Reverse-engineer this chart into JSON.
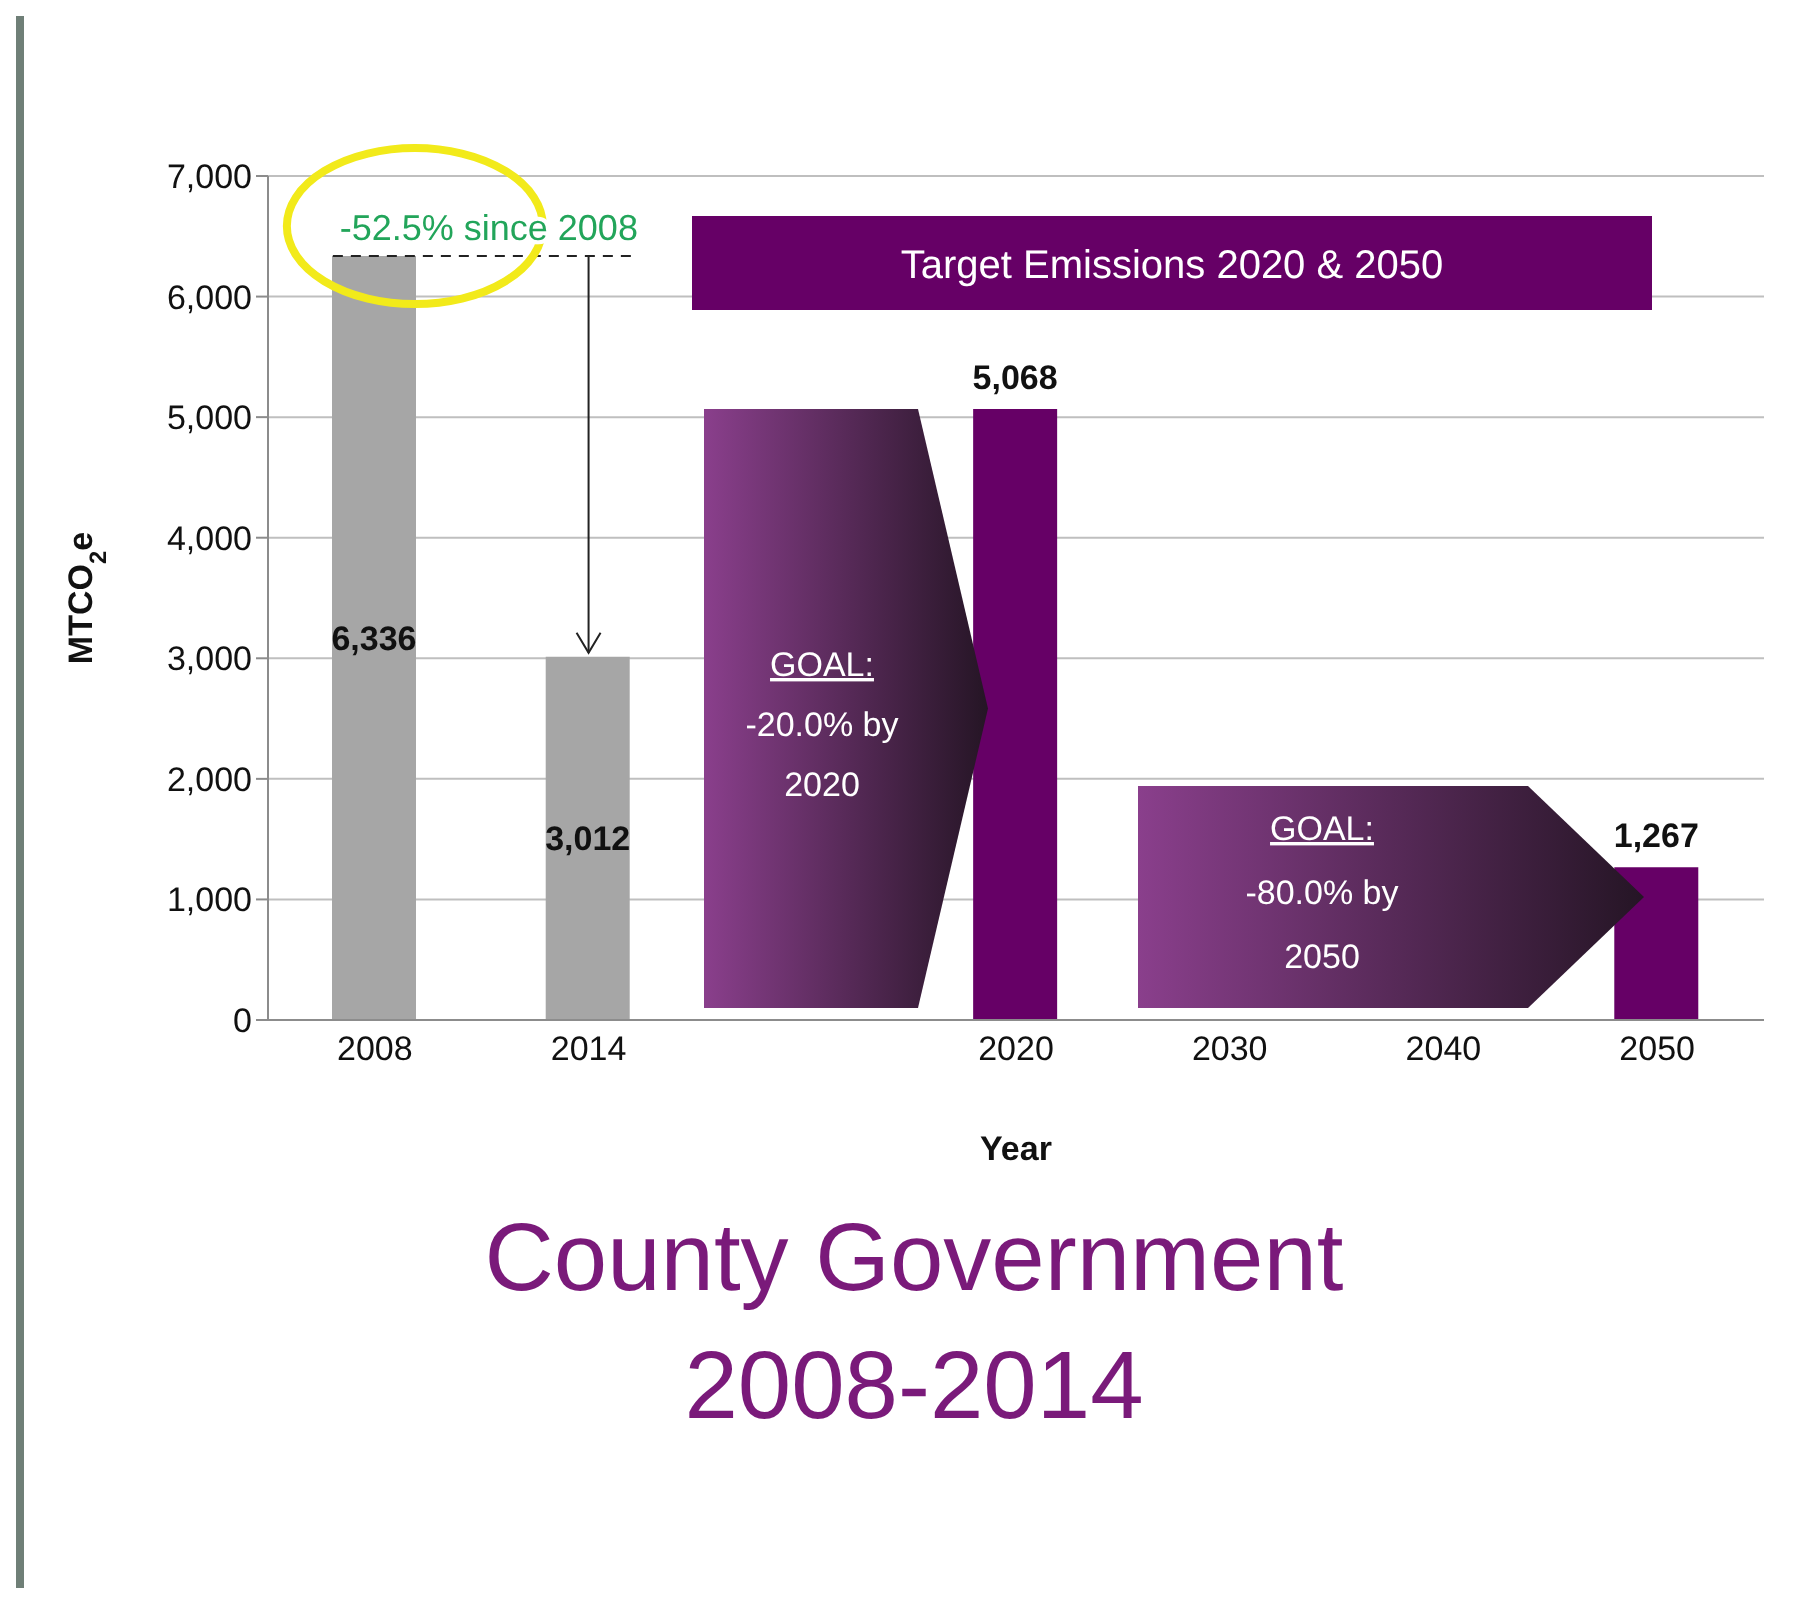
{
  "chart_data": {
    "type": "bar",
    "title": "County Government 2008-2014",
    "xlabel": "Year",
    "ylabel": "MTCO$_{2}$e",
    "categories": [
      "2008",
      "2014",
      null,
      "2020",
      "2030",
      "2040",
      "2050"
    ],
    "values": [
      6336,
      3012,
      null,
      5068,
      null,
      null,
      1267
    ],
    "colors": [
      "#a6a6a6",
      "#a6a6a6",
      null,
      "#660066",
      null,
      null,
      "#660066"
    ],
    "value_labels": [
      "6,336",
      "3,012",
      null,
      "5,068",
      null,
      null,
      "1,267"
    ],
    "ylim": [
      0,
      7000
    ],
    "yticks": [
      {
        "value": 0,
        "label": "0"
      },
      {
        "value": 1000,
        "label": "1,000"
      },
      {
        "value": 2000,
        "label": "2,000"
      },
      {
        "value": 3000,
        "label": "3,000"
      },
      {
        "value": 4000,
        "label": "4,000"
      },
      {
        "value": 5000,
        "label": "5,000"
      },
      {
        "value": 6000,
        "label": "6,000"
      },
      {
        "value": 7000,
        "label": "7,000"
      }
    ],
    "grid": "y",
    "annotations": [
      {
        "text": "-52.5% since 2008",
        "x": "2014",
        "y": 3012
      },
      "Target Emissions 2020 & 2050",
      "GOAL: -20.0% by 2020",
      "GOAL: -80.0% by 2050"
    ]
  }
}
